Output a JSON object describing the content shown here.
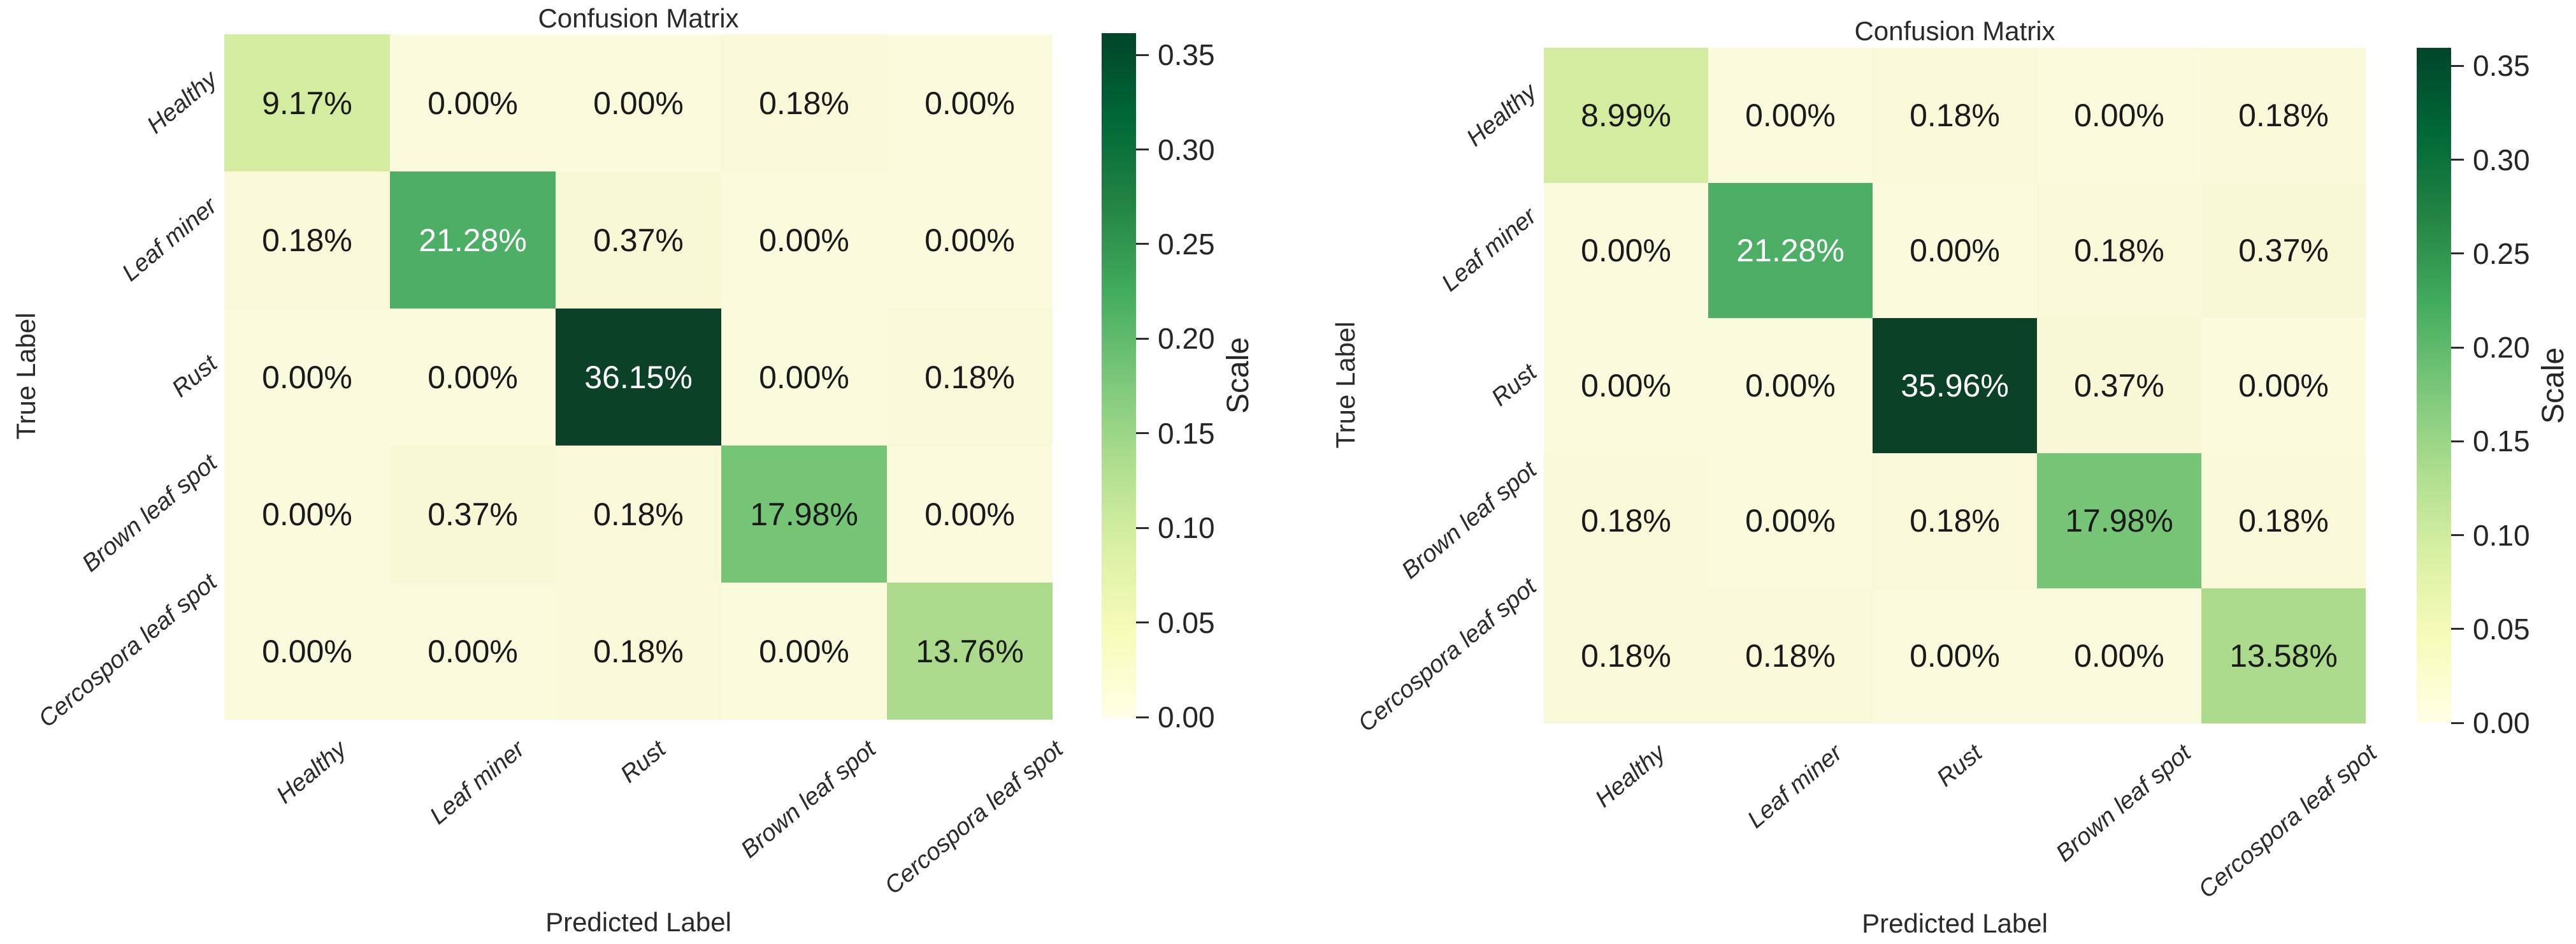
{
  "colors": {
    "background": "#ffffff",
    "text": "#262626",
    "tick_label_text": "#2b2b2b",
    "cell_text_dark": "#1a1a1a",
    "cell_text_light": "#ffffff",
    "colormap_name": "YlGn",
    "colormap_stops": [
      "#ffffe5",
      "#f7fcb9",
      "#d9f0a3",
      "#addd8e",
      "#78c679",
      "#41ab5d",
      "#238443",
      "#006837",
      "#004529"
    ],
    "cell_zero_bg": "#fafadd",
    "diag_dark_green": "#0b4227",
    "diag_mid_green": "#4daf66",
    "diag_green": "#76c577",
    "diag_light_green": "#abda8c",
    "diag_pale_green": "#d4ec9f"
  },
  "panels": [
    {
      "title": "Confusion Matrix",
      "xlabel": "Predicted Label",
      "ylabel": "True Label",
      "colorbar_label": "Scale",
      "colorbar_ticks": [
        "0.35",
        "0.30",
        "0.25",
        "0.20",
        "0.15",
        "0.10",
        "0.05",
        "0.00"
      ],
      "vmax": 0.3615,
      "classes": [
        "Healthy",
        "Leaf miner",
        "Rust",
        "Brown leaf spot",
        "Cercospora leaf spot"
      ],
      "cells": [
        [
          {
            "t": "9.17%",
            "bg": "#d4ec9f",
            "fg": "dark"
          },
          {
            "t": "0.00%",
            "bg": "#fafadd",
            "fg": "dark"
          },
          {
            "t": "0.00%",
            "bg": "#fafadd",
            "fg": "dark"
          },
          {
            "t": "0.18%",
            "bg": "#f9f9da",
            "fg": "dark"
          },
          {
            "t": "0.00%",
            "bg": "#fafadd",
            "fg": "dark"
          }
        ],
        [
          {
            "t": "0.18%",
            "bg": "#f9f9da",
            "fg": "dark"
          },
          {
            "t": "21.28%",
            "bg": "#4daf66",
            "fg": "light"
          },
          {
            "t": "0.37%",
            "bg": "#f8f8d7",
            "fg": "dark"
          },
          {
            "t": "0.00%",
            "bg": "#fafadd",
            "fg": "dark"
          },
          {
            "t": "0.00%",
            "bg": "#fafadd",
            "fg": "dark"
          }
        ],
        [
          {
            "t": "0.00%",
            "bg": "#fafadd",
            "fg": "dark"
          },
          {
            "t": "0.00%",
            "bg": "#fafadd",
            "fg": "dark"
          },
          {
            "t": "36.15%",
            "bg": "#0b4227",
            "fg": "light"
          },
          {
            "t": "0.00%",
            "bg": "#fafadd",
            "fg": "dark"
          },
          {
            "t": "0.18%",
            "bg": "#f9f9da",
            "fg": "dark"
          }
        ],
        [
          {
            "t": "0.00%",
            "bg": "#fafadd",
            "fg": "dark"
          },
          {
            "t": "0.37%",
            "bg": "#f8f8d7",
            "fg": "dark"
          },
          {
            "t": "0.18%",
            "bg": "#f9f9da",
            "fg": "dark"
          },
          {
            "t": "17.98%",
            "bg": "#76c577",
            "fg": "dark"
          },
          {
            "t": "0.00%",
            "bg": "#fafadd",
            "fg": "dark"
          }
        ],
        [
          {
            "t": "0.00%",
            "bg": "#fafadd",
            "fg": "dark"
          },
          {
            "t": "0.00%",
            "bg": "#fafadd",
            "fg": "dark"
          },
          {
            "t": "0.18%",
            "bg": "#f9f9da",
            "fg": "dark"
          },
          {
            "t": "0.00%",
            "bg": "#fafadd",
            "fg": "dark"
          },
          {
            "t": "13.76%",
            "bg": "#abda8c",
            "fg": "dark"
          }
        ]
      ]
    },
    {
      "title": "Confusion Matrix",
      "xlabel": "Predicted Label",
      "ylabel": "True Label",
      "colorbar_label": "Scale",
      "colorbar_ticks": [
        "0.35",
        "0.30",
        "0.25",
        "0.20",
        "0.15",
        "0.10",
        "0.05",
        "0.00"
      ],
      "vmax": 0.3596,
      "classes": [
        "Healthy",
        "Leaf miner",
        "Rust",
        "Brown leaf spot",
        "Cercospora leaf spot"
      ],
      "cells": [
        [
          {
            "t": "8.99%",
            "bg": "#d4ec9f",
            "fg": "dark"
          },
          {
            "t": "0.00%",
            "bg": "#fafadd",
            "fg": "dark"
          },
          {
            "t": "0.18%",
            "bg": "#f9f9da",
            "fg": "dark"
          },
          {
            "t": "0.00%",
            "bg": "#fafadd",
            "fg": "dark"
          },
          {
            "t": "0.18%",
            "bg": "#f9f9da",
            "fg": "dark"
          }
        ],
        [
          {
            "t": "0.00%",
            "bg": "#fafadd",
            "fg": "dark"
          },
          {
            "t": "21.28%",
            "bg": "#4daf66",
            "fg": "light"
          },
          {
            "t": "0.00%",
            "bg": "#fafadd",
            "fg": "dark"
          },
          {
            "t": "0.18%",
            "bg": "#f9f9da",
            "fg": "dark"
          },
          {
            "t": "0.37%",
            "bg": "#f8f8d7",
            "fg": "dark"
          }
        ],
        [
          {
            "t": "0.00%",
            "bg": "#fafadd",
            "fg": "dark"
          },
          {
            "t": "0.00%",
            "bg": "#fafadd",
            "fg": "dark"
          },
          {
            "t": "35.96%",
            "bg": "#0b4227",
            "fg": "light"
          },
          {
            "t": "0.37%",
            "bg": "#f8f8d7",
            "fg": "dark"
          },
          {
            "t": "0.00%",
            "bg": "#fafadd",
            "fg": "dark"
          }
        ],
        [
          {
            "t": "0.18%",
            "bg": "#f9f9da",
            "fg": "dark"
          },
          {
            "t": "0.00%",
            "bg": "#fafadd",
            "fg": "dark"
          },
          {
            "t": "0.18%",
            "bg": "#f9f9da",
            "fg": "dark"
          },
          {
            "t": "17.98%",
            "bg": "#76c577",
            "fg": "dark"
          },
          {
            "t": "0.18%",
            "bg": "#f9f9da",
            "fg": "dark"
          }
        ],
        [
          {
            "t": "0.18%",
            "bg": "#f9f9da",
            "fg": "dark"
          },
          {
            "t": "0.18%",
            "bg": "#f9f9da",
            "fg": "dark"
          },
          {
            "t": "0.00%",
            "bg": "#fafadd",
            "fg": "dark"
          },
          {
            "t": "0.00%",
            "bg": "#fafadd",
            "fg": "dark"
          },
          {
            "t": "13.58%",
            "bg": "#abda8c",
            "fg": "dark"
          }
        ]
      ]
    }
  ],
  "chart_data": [
    {
      "type": "heatmap",
      "title": "Confusion Matrix",
      "xlabel": "Predicted Label",
      "ylabel": "True Label",
      "categories": [
        "Healthy",
        "Leaf miner",
        "Rust",
        "Brown leaf spot",
        "Cercospora leaf spot"
      ],
      "values_percent": [
        [
          9.17,
          0.0,
          0.0,
          0.18,
          0.0
        ],
        [
          0.18,
          21.28,
          0.37,
          0.0,
          0.0
        ],
        [
          0.0,
          0.0,
          36.15,
          0.0,
          0.18
        ],
        [
          0.0,
          0.37,
          0.18,
          17.98,
          0.0
        ],
        [
          0.0,
          0.0,
          0.18,
          0.0,
          13.76
        ]
      ],
      "cell_label_format": "percent",
      "colormap": "YlGn",
      "colorbar": {
        "label": "Scale",
        "ticks": [
          0.0,
          0.05,
          0.1,
          0.15,
          0.2,
          0.25,
          0.3,
          0.35
        ],
        "vmin": 0.0,
        "vmax": 0.3615
      },
      "grid": false,
      "tick_label_style": "italic, rotated 40deg"
    },
    {
      "type": "heatmap",
      "title": "Confusion Matrix",
      "xlabel": "Predicted Label",
      "ylabel": "True Label",
      "categories": [
        "Healthy",
        "Leaf miner",
        "Rust",
        "Brown leaf spot",
        "Cercospora leaf spot"
      ],
      "values_percent": [
        [
          8.99,
          0.0,
          0.18,
          0.0,
          0.18
        ],
        [
          0.0,
          21.28,
          0.0,
          0.18,
          0.37
        ],
        [
          0.0,
          0.0,
          35.96,
          0.37,
          0.0
        ],
        [
          0.18,
          0.0,
          0.18,
          17.98,
          0.18
        ],
        [
          0.18,
          0.18,
          0.0,
          0.0,
          13.58
        ]
      ],
      "cell_label_format": "percent",
      "colormap": "YlGn",
      "colorbar": {
        "label": "Scale",
        "ticks": [
          0.0,
          0.05,
          0.1,
          0.15,
          0.2,
          0.25,
          0.3,
          0.35
        ],
        "vmin": 0.0,
        "vmax": 0.3596
      },
      "grid": false,
      "tick_label_style": "italic, rotated 40deg"
    }
  ]
}
